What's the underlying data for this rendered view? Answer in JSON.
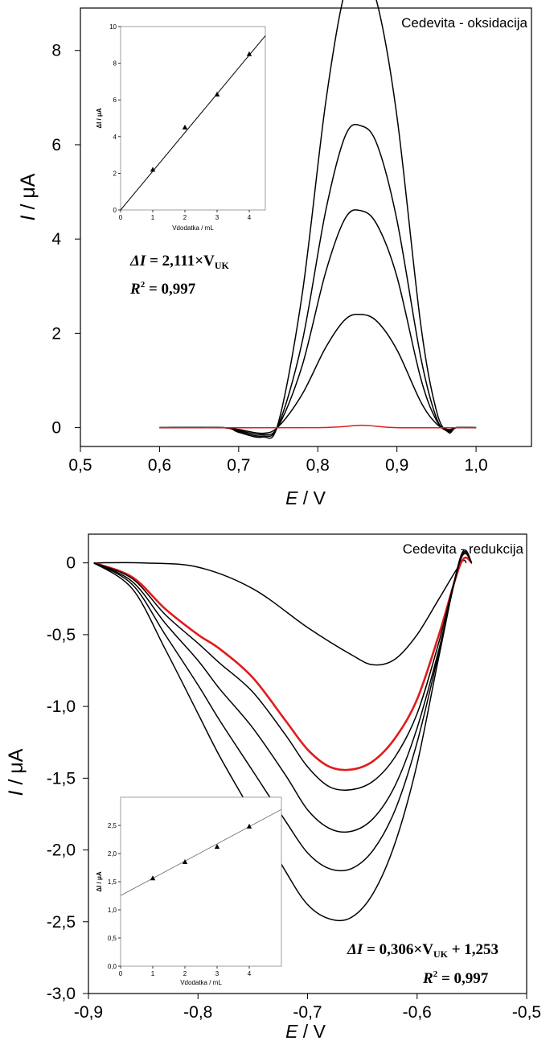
{
  "chart_data": [
    {
      "type": "line",
      "title": "Cedevita - oksidacija",
      "xlabel": "E / V",
      "xlabel_var": "E",
      "xlabel_unit": " / V",
      "ylabel": "I / μA",
      "ylabel_var": "I",
      "ylabel_unit": " / μA",
      "xlim": [
        0.5,
        1.07
      ],
      "ylim": [
        -0.4,
        8.9
      ],
      "xticks": [
        0.5,
        0.6,
        0.7,
        0.8,
        0.9,
        1.0
      ],
      "xtick_labels": [
        "0,5",
        "0,6",
        "0,7",
        "0,8",
        "0,9",
        "1,0"
      ],
      "yticks": [
        0,
        2,
        4,
        6,
        8
      ],
      "ytick_labels": [
        "0",
        "2",
        "4",
        "6",
        "8"
      ],
      "series": [
        {
          "color": "#000000",
          "peak": 9.6,
          "x": [
            0.6,
            0.68,
            0.7,
            0.73,
            0.75,
            0.78,
            0.81,
            0.835,
            0.855,
            0.875,
            0.9,
            0.93,
            0.95,
            0.965,
            0.975,
            1.0
          ],
          "y": [
            0,
            0,
            -0.1,
            -0.2,
            0.1,
            2.8,
            6.9,
            9.3,
            9.6,
            9.0,
            6.6,
            2.2,
            0.35,
            -0.1,
            0.0,
            0
          ]
        },
        {
          "color": "#000000",
          "peak": 6.4,
          "x": [
            0.6,
            0.68,
            0.7,
            0.73,
            0.75,
            0.78,
            0.81,
            0.835,
            0.855,
            0.875,
            0.9,
            0.93,
            0.95,
            0.965,
            0.975,
            1.0
          ],
          "y": [
            0,
            0,
            -0.08,
            -0.18,
            0.05,
            1.8,
            4.6,
            6.2,
            6.4,
            6.0,
            4.4,
            1.5,
            0.2,
            -0.08,
            0.0,
            0
          ]
        },
        {
          "color": "#000000",
          "peak": 4.6,
          "x": [
            0.6,
            0.68,
            0.7,
            0.73,
            0.75,
            0.78,
            0.81,
            0.835,
            0.855,
            0.875,
            0.9,
            0.93,
            0.95,
            0.965,
            0.975,
            1.0
          ],
          "y": [
            0,
            0,
            -0.06,
            -0.15,
            0.03,
            1.3,
            3.3,
            4.45,
            4.6,
            4.3,
            3.2,
            1.05,
            0.15,
            -0.06,
            0.0,
            0
          ]
        },
        {
          "color": "#000000",
          "peak": 2.4,
          "x": [
            0.6,
            0.68,
            0.7,
            0.73,
            0.75,
            0.78,
            0.81,
            0.835,
            0.855,
            0.875,
            0.9,
            0.93,
            0.95,
            0.965,
            0.975,
            1.0
          ],
          "y": [
            0,
            0,
            -0.04,
            -0.12,
            0.02,
            0.7,
            1.7,
            2.3,
            2.4,
            2.25,
            1.65,
            0.55,
            0.08,
            -0.04,
            0.0,
            0
          ]
        },
        {
          "color": "#e11b1b",
          "peak": 0.05,
          "x": [
            0.6,
            0.8,
            0.855,
            0.9,
            1.0
          ],
          "y": [
            0,
            0,
            0.05,
            0,
            0
          ]
        }
      ],
      "inset": {
        "xlabel": "Vdodatka / mL",
        "ylabel": "ΔI / μA",
        "xlim": [
          0,
          4.5
        ],
        "ylim": [
          0,
          10
        ],
        "xticks": [
          0,
          1,
          2,
          3,
          4
        ],
        "xtick_labels": [
          "0",
          "1",
          "2",
          "3",
          "4"
        ],
        "yticks": [
          0,
          2,
          4,
          6,
          8,
          10
        ],
        "ytick_labels": [
          "0",
          "2",
          "4",
          "6",
          "8",
          "10"
        ],
        "points": [
          {
            "x": 1,
            "y": 2.2
          },
          {
            "x": 2,
            "y": 4.5
          },
          {
            "x": 3,
            "y": 6.3
          },
          {
            "x": 4,
            "y": 8.5
          }
        ],
        "fit": {
          "slope": 2.111,
          "intercept": 0
        }
      },
      "annotation_line1_parts": [
        "ΔI",
        " = 2,111×V",
        "UK"
      ],
      "annotation_line2_parts": [
        "R",
        "2",
        " = 0,997"
      ]
    },
    {
      "type": "line",
      "title": "Cedevita - redukcija",
      "xlabel": "E / V",
      "xlabel_var": "E",
      "xlabel_unit": " / V",
      "ylabel": "I / μA",
      "ylabel_var": "I",
      "ylabel_unit": " / μA",
      "xlim": [
        -0.9,
        -0.5
      ],
      "ylim": [
        -3.0,
        0.2
      ],
      "xticks": [
        -0.9,
        -0.8,
        -0.7,
        -0.6,
        -0.5
      ],
      "xtick_labels": [
        "-0,9",
        "-0,8",
        "-0,7",
        "-0,6",
        "-0,5"
      ],
      "yticks": [
        0,
        -0.5,
        -1.0,
        -1.5,
        -2.0,
        -2.5,
        -3.0
      ],
      "ytick_labels": [
        "0",
        "-0,5",
        "-1,0",
        "-1,5",
        "-2,0",
        "-2,5",
        "-3,0"
      ],
      "series": [
        {
          "color": "#000000",
          "x": [
            -0.895,
            -0.85,
            -0.8,
            -0.75,
            -0.7,
            -0.66,
            -0.64,
            -0.62,
            -0.6,
            -0.58,
            -0.56,
            -0.555
          ],
          "y": [
            0,
            0,
            -0.03,
            -0.18,
            -0.45,
            -0.64,
            -0.71,
            -0.67,
            -0.5,
            -0.25,
            0.0,
            0.0
          ]
        },
        {
          "color": "#e11b1b",
          "x": [
            -0.895,
            -0.86,
            -0.83,
            -0.8,
            -0.78,
            -0.75,
            -0.72,
            -0.7,
            -0.68,
            -0.66,
            -0.64,
            -0.62,
            -0.6,
            -0.58,
            -0.56,
            -0.55
          ],
          "y": [
            0,
            -0.1,
            -0.32,
            -0.5,
            -0.6,
            -0.8,
            -1.1,
            -1.3,
            -1.42,
            -1.44,
            -1.38,
            -1.22,
            -0.95,
            -0.5,
            0.0,
            0.0
          ]
        },
        {
          "color": "#000000",
          "x": [
            -0.895,
            -0.86,
            -0.83,
            -0.8,
            -0.78,
            -0.75,
            -0.72,
            -0.7,
            -0.68,
            -0.66,
            -0.64,
            -0.62,
            -0.6,
            -0.58,
            -0.56,
            -0.55
          ],
          "y": [
            0,
            -0.11,
            -0.36,
            -0.56,
            -0.7,
            -0.9,
            -1.2,
            -1.42,
            -1.56,
            -1.58,
            -1.52,
            -1.35,
            -1.05,
            -0.55,
            0.03,
            0.0
          ]
        },
        {
          "color": "#000000",
          "x": [
            -0.895,
            -0.86,
            -0.83,
            -0.8,
            -0.78,
            -0.75,
            -0.72,
            -0.7,
            -0.68,
            -0.66,
            -0.64,
            -0.62,
            -0.6,
            -0.58,
            -0.56,
            -0.55
          ],
          "y": [
            0,
            -0.13,
            -0.42,
            -0.68,
            -0.88,
            -1.15,
            -1.48,
            -1.72,
            -1.85,
            -1.87,
            -1.78,
            -1.55,
            -1.15,
            -0.6,
            0.03,
            0.0
          ]
        },
        {
          "color": "#000000",
          "x": [
            -0.895,
            -0.86,
            -0.83,
            -0.8,
            -0.78,
            -0.75,
            -0.72,
            -0.7,
            -0.68,
            -0.66,
            -0.64,
            -0.62,
            -0.6,
            -0.58,
            -0.56,
            -0.55
          ],
          "y": [
            0,
            -0.15,
            -0.5,
            -0.85,
            -1.1,
            -1.45,
            -1.8,
            -2.02,
            -2.13,
            -2.13,
            -2.0,
            -1.72,
            -1.25,
            -0.62,
            0.04,
            0.0
          ]
        },
        {
          "color": "#000000",
          "x": [
            -0.895,
            -0.86,
            -0.83,
            -0.8,
            -0.78,
            -0.75,
            -0.72,
            -0.7,
            -0.68,
            -0.66,
            -0.64,
            -0.62,
            -0.6,
            -0.58,
            -0.56,
            -0.55
          ],
          "y": [
            0,
            -0.18,
            -0.6,
            -1.05,
            -1.35,
            -1.75,
            -2.15,
            -2.38,
            -2.48,
            -2.47,
            -2.3,
            -1.95,
            -1.4,
            -0.65,
            0.05,
            0.0
          ]
        }
      ],
      "inset": {
        "xlabel": "Vdodatka / mL",
        "ylabel": "ΔI / μA",
        "xlim": [
          0,
          5
        ],
        "ylim": [
          0,
          3
        ],
        "xticks": [
          0,
          1,
          2,
          3,
          4
        ],
        "xtick_labels": [
          "0",
          "1",
          "2",
          "3",
          "4"
        ],
        "yticks": [
          0,
          0.5,
          1.0,
          1.5,
          2.0,
          2.5
        ],
        "ytick_labels": [
          "0,0",
          "0,5",
          "1,0",
          "1,5",
          "2,0",
          "2,5"
        ],
        "points": [
          {
            "x": 1,
            "y": 1.56
          },
          {
            "x": 2,
            "y": 1.85
          },
          {
            "x": 3,
            "y": 2.12
          },
          {
            "x": 4,
            "y": 2.48
          }
        ],
        "fit": {
          "slope": 0.306,
          "intercept": 1.253
        }
      },
      "annotation_line1_parts": [
        "ΔI",
        " = 0,306×V",
        "UK",
        " + 1,253"
      ],
      "annotation_line2_parts": [
        "R",
        "2",
        " = 0,997"
      ]
    }
  ]
}
